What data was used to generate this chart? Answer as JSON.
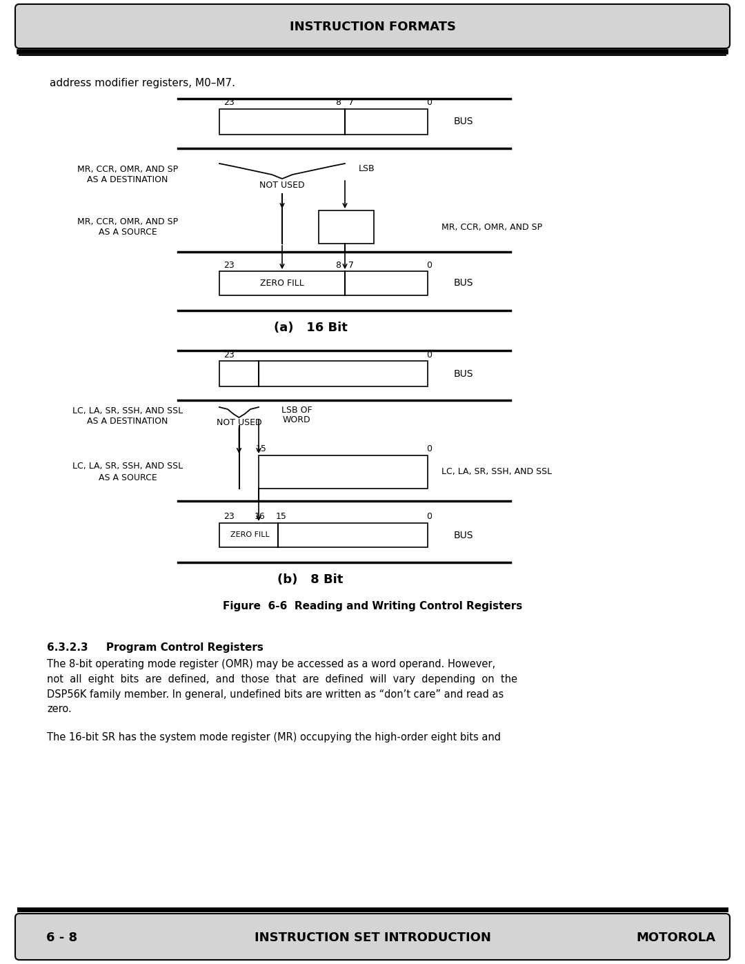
{
  "title_header": "INSTRUCTION FORMATS",
  "footer_left": "6 - 8",
  "footer_center": "INSTRUCTION SET INTRODUCTION",
  "footer_right": "MOTOROLA",
  "intro_text": "address modifier registers, M0–M7.",
  "fig_caption": "Figure  6-6  Reading and Writing Control Registers",
  "section_title": "6.3.2.3     Program Control Registers",
  "body_line1": "The 8-bit operating mode register (OMR) may be accessed as a word operand. However,",
  "body_line2": "not  all  eight  bits  are  defined,  and  those  that  are  defined  will  vary  depending  on  the",
  "body_line3": "DSP56K family member. In general, undefined bits are written as “don’t care” and read as",
  "body_line4": "zero.",
  "body_line5": "The 16-bit SR has the system mode register (MR) occupying the high-order eight bits and",
  "bg_color": "#ffffff",
  "header_bg": "#d4d4d4",
  "footer_bg": "#d4d4d4",
  "text_color": "#000000"
}
